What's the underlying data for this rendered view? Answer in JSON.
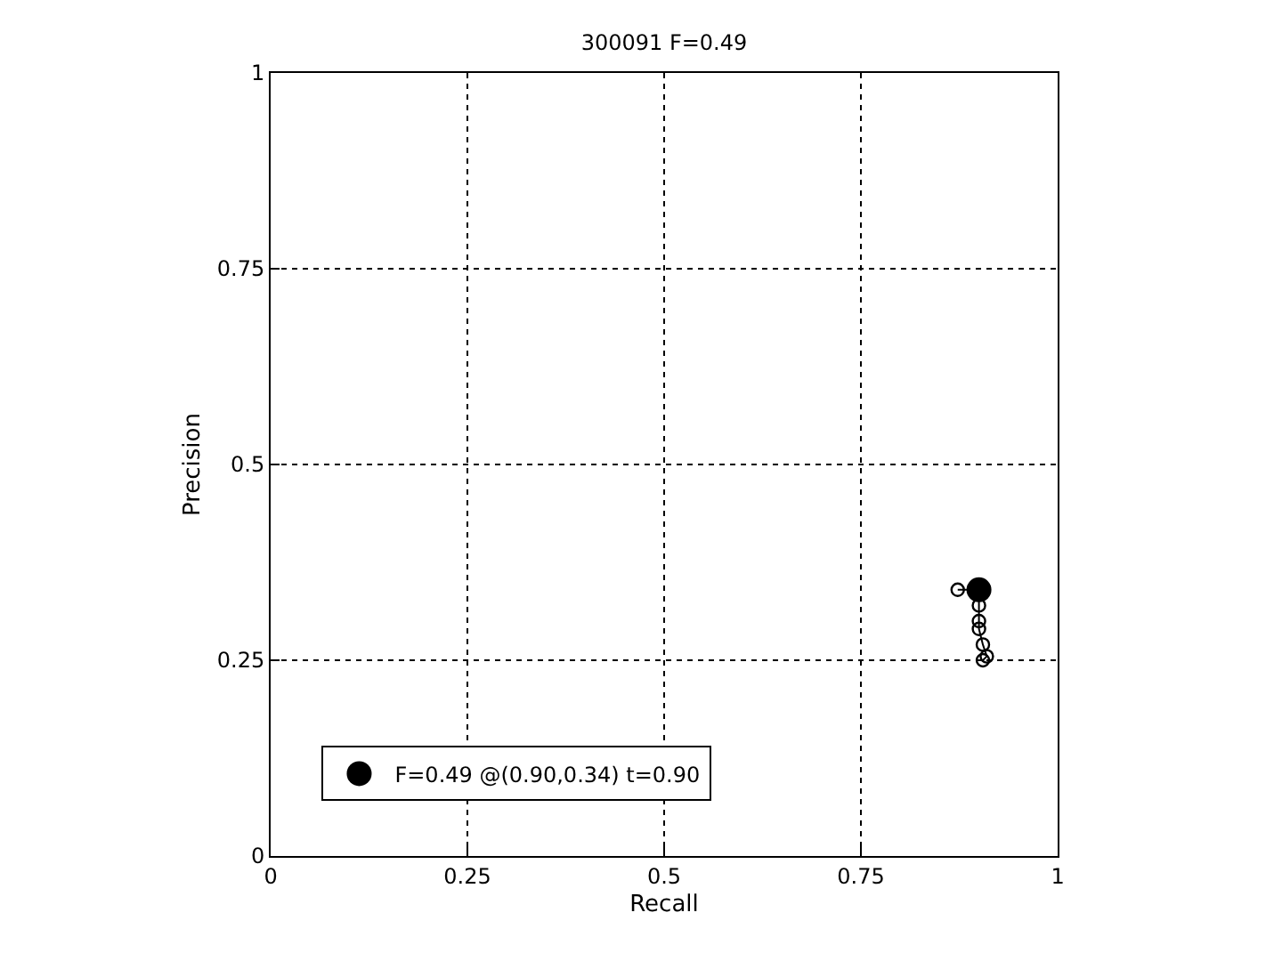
{
  "chart_data": {
    "type": "line",
    "title": "300091 F=0.49",
    "xlabel": "Recall",
    "ylabel": "Precision",
    "xlim": [
      0,
      1
    ],
    "ylim": [
      0,
      1
    ],
    "xticks": [
      0,
      0.25,
      0.5,
      0.75,
      1
    ],
    "yticks": [
      0,
      0.25,
      0.5,
      0.75,
      1
    ],
    "grid": true,
    "legend": "bottom left",
    "marker": "circle",
    "series": [
      {
        "color": "#000000",
        "x": [
          0.873,
          0.9,
          0.9,
          0.9,
          0.9,
          0.905,
          0.91,
          0.905
        ],
        "values": [
          0.34,
          0.34,
          0.32,
          0.3,
          0.29,
          0.27,
          0.255,
          0.25
        ]
      },
      {
        "type": "scatter",
        "name": "F=0.49 @(0.90,0.34) t=0.90",
        "color": "#000000",
        "x": [
          0.9
        ],
        "values": [
          0.34
        ]
      }
    ]
  }
}
